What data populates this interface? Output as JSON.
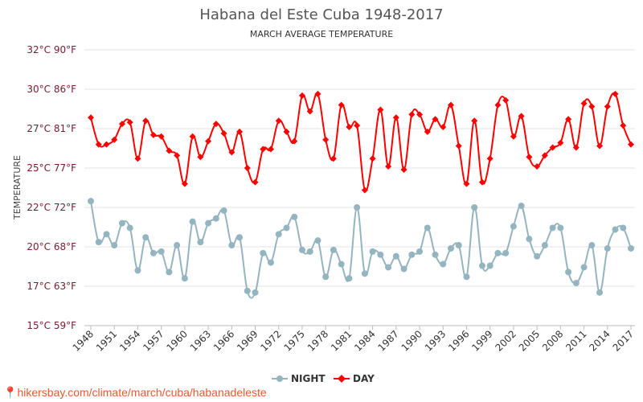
{
  "chart_data": {
    "type": "line",
    "title": "Habana del Este Cuba 1948-2017",
    "subtitle": "MARCH AVERAGE TEMPERATURE",
    "ylabel": "TEMPERATURE",
    "xlabel": "",
    "ylim": [
      15,
      32.5
    ],
    "yticks": [
      {
        "value": 15,
        "label": "15°C 59°F"
      },
      {
        "value": 17.5,
        "label": "17°C 63°F"
      },
      {
        "value": 20,
        "label": "20°C 68°F"
      },
      {
        "value": 22.5,
        "label": "22°C 72°F"
      },
      {
        "value": 25,
        "label": "25°C 77°F"
      },
      {
        "value": 27.5,
        "label": "27°C 81°F"
      },
      {
        "value": 30,
        "label": "30°C 86°F"
      },
      {
        "value": 32.5,
        "label": "32°C 90°F"
      }
    ],
    "xticks": [
      "1948",
      "1951",
      "1954",
      "1957",
      "1960",
      "1963",
      "1966",
      "1969",
      "1972",
      "1975",
      "1978",
      "1981",
      "1984",
      "1987",
      "1990",
      "1993",
      "1996",
      "1999",
      "2002",
      "2005",
      "2008",
      "2011",
      "2014",
      "2017"
    ],
    "x_start": 1948,
    "x_end": 2017,
    "grid": true,
    "legend_position": "bottom",
    "series": [
      {
        "name": "NIGHT",
        "color": "#94b5c0",
        "values": [
          22.9,
          20.3,
          20.8,
          20.1,
          21.5,
          21.2,
          18.5,
          20.6,
          19.6,
          19.7,
          18.4,
          20.1,
          18.0,
          21.6,
          20.3,
          21.5,
          21.8,
          22.3,
          20.1,
          20.6,
          17.2,
          17.1,
          19.6,
          19.0,
          20.8,
          21.2,
          21.9,
          19.8,
          19.7,
          20.4,
          18.1,
          19.8,
          18.9,
          18.0,
          22.5,
          18.3,
          19.7,
          19.5,
          18.7,
          19.4,
          18.6,
          19.5,
          19.7,
          21.2,
          19.5,
          18.9,
          19.9,
          20.1,
          18.1,
          22.5,
          18.8,
          18.8,
          19.6,
          19.6,
          21.3,
          22.6,
          20.5,
          19.4,
          20.1,
          21.2,
          21.2,
          18.4,
          17.7,
          18.7,
          20.1,
          17.1,
          19.9,
          21.1,
          21.2,
          19.9
        ]
      },
      {
        "name": "DAY",
        "color": "#ff0000",
        "values": [
          28.2,
          26.5,
          26.5,
          26.8,
          27.8,
          27.9,
          25.6,
          28.0,
          27.1,
          27.0,
          26.1,
          25.8,
          24.0,
          27.0,
          25.7,
          26.7,
          27.8,
          27.2,
          26.0,
          27.3,
          25.0,
          24.1,
          26.2,
          26.2,
          28.0,
          27.3,
          26.7,
          29.6,
          28.6,
          29.7,
          26.8,
          25.6,
          29.0,
          27.6,
          27.7,
          23.6,
          25.6,
          28.7,
          25.1,
          28.2,
          24.9,
          28.4,
          28.4,
          27.3,
          28.1,
          27.6,
          29.0,
          26.4,
          24.0,
          28.0,
          24.1,
          25.6,
          29.0,
          29.3,
          27.0,
          28.3,
          25.7,
          25.1,
          25.8,
          26.3,
          26.6,
          28.1,
          26.3,
          29.1,
          28.9,
          26.4,
          28.9,
          29.7,
          27.7,
          26.5
        ]
      }
    ]
  },
  "watermark": "hikersbay.com/climate/march/cuba/habanadeleste"
}
